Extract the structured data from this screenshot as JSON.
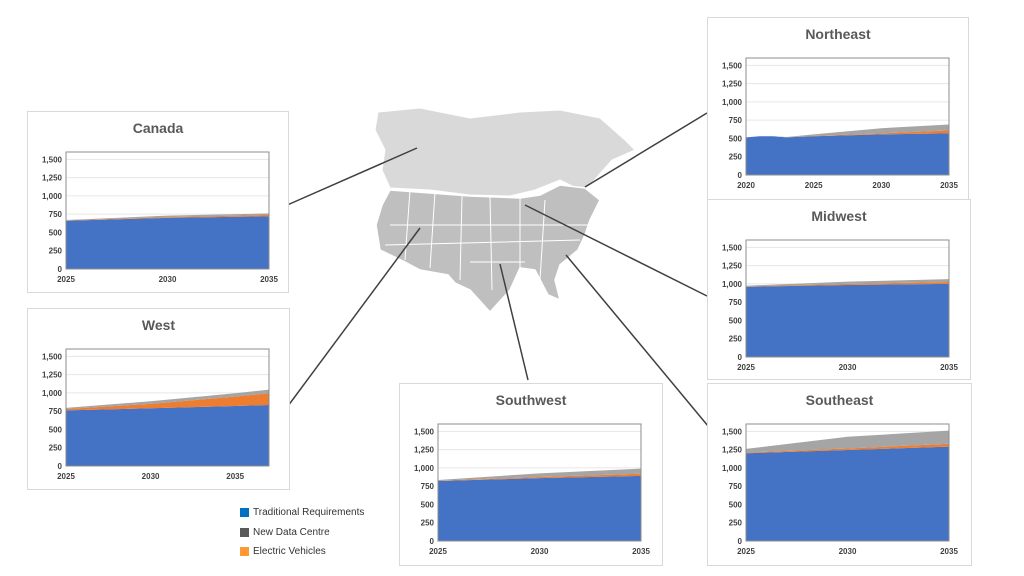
{
  "colors": {
    "traditional": "#4472c4",
    "data_centre": "#a5a5a5",
    "ev": "#ed7d31"
  },
  "legend": [
    {
      "label": "Traditional Requirements",
      "color": "#0070c0"
    },
    {
      "label": "New Data Centre",
      "color": "#595959"
    },
    {
      "label": "Electric Vehicles",
      "color": "#ff9933"
    }
  ],
  "chart_data": [
    {
      "type": "area",
      "title": "Canada",
      "stacked": true,
      "ylim": [
        0,
        1600
      ],
      "yticks": [
        0,
        250,
        500,
        750,
        "1,000",
        "1,250",
        "1,500"
      ],
      "xlim": [
        2025,
        2035
      ],
      "xticks": [
        2025,
        2030,
        2035
      ],
      "x": [
        2025,
        2030,
        2035
      ],
      "series": [
        {
          "name": "Traditional Requirements",
          "values": [
            660,
            700,
            720
          ]
        },
        {
          "name": "Electric Vehicles",
          "values": [
            5,
            10,
            20
          ]
        },
        {
          "name": "New Data Centre",
          "values": [
            5,
            20,
            20
          ]
        }
      ]
    },
    {
      "type": "area",
      "title": "West",
      "stacked": true,
      "ylim": [
        0,
        1600
      ],
      "yticks": [
        0,
        250,
        500,
        750,
        "1,000",
        "1,250",
        "1,500"
      ],
      "xlim": [
        2025,
        2037
      ],
      "xticks": [
        2025,
        2030,
        2035
      ],
      "x": [
        2025,
        2030,
        2035,
        2037
      ],
      "series": [
        {
          "name": "Traditional Requirements",
          "values": [
            760,
            790,
            820,
            835
          ]
        },
        {
          "name": "Electric Vehicles",
          "values": [
            20,
            60,
            130,
            160
          ]
        },
        {
          "name": "New Data Centre",
          "values": [
            15,
            35,
            45,
            50
          ]
        }
      ]
    },
    {
      "type": "area",
      "title": "Southwest",
      "stacked": true,
      "ylim": [
        0,
        1600
      ],
      "yticks": [
        0,
        250,
        500,
        750,
        "1,000",
        "1,250",
        "1,500"
      ],
      "xlim": [
        2025,
        2035
      ],
      "xticks": [
        2025,
        2030,
        2035
      ],
      "x": [
        2025,
        2030,
        2035
      ],
      "series": [
        {
          "name": "Traditional Requirements",
          "values": [
            820,
            860,
            890
          ]
        },
        {
          "name": "Electric Vehicles",
          "values": [
            5,
            15,
            30
          ]
        },
        {
          "name": "New Data Centre",
          "values": [
            10,
            50,
            70
          ]
        }
      ]
    },
    {
      "type": "area",
      "title": "Northeast",
      "stacked": true,
      "ylim": [
        0,
        1600
      ],
      "yticks": [
        0,
        250,
        500,
        750,
        "1,000",
        "1,250",
        "1,500"
      ],
      "xlim": [
        2020,
        2035
      ],
      "xticks": [
        2020,
        2025,
        2030,
        2035
      ],
      "x": [
        2020,
        2021,
        2022,
        2023,
        2025,
        2030,
        2035
      ],
      "series": [
        {
          "name": "Traditional Requirements",
          "values": [
            515,
            530,
            530,
            515,
            530,
            555,
            570
          ]
        },
        {
          "name": "Electric Vehicles",
          "values": [
            0,
            0,
            0,
            0,
            5,
            15,
            40
          ]
        },
        {
          "name": "New Data Centre",
          "values": [
            0,
            0,
            0,
            5,
            20,
            70,
            80
          ]
        }
      ]
    },
    {
      "type": "area",
      "title": "Midwest",
      "stacked": true,
      "ylim": [
        0,
        1600
      ],
      "yticks": [
        0,
        250,
        500,
        750,
        "1,000",
        "1,250",
        "1,500"
      ],
      "xlim": [
        2025,
        2035
      ],
      "xticks": [
        2025,
        2030,
        2035
      ],
      "x": [
        2025,
        2030,
        2035
      ],
      "series": [
        {
          "name": "Traditional Requirements",
          "values": [
            960,
            985,
            1000
          ]
        },
        {
          "name": "Electric Vehicles",
          "values": [
            5,
            15,
            25
          ]
        },
        {
          "name": "New Data Centre",
          "values": [
            10,
            30,
            40
          ]
        }
      ]
    },
    {
      "type": "area",
      "title": "Southeast",
      "stacked": true,
      "ylim": [
        0,
        1600
      ],
      "yticks": [
        0,
        250,
        500,
        750,
        "1,000",
        "1,250",
        "1,500"
      ],
      "xlim": [
        2025,
        2035
      ],
      "xticks": [
        2025,
        2030,
        2035
      ],
      "x": [
        2025,
        2030,
        2035
      ],
      "series": [
        {
          "name": "Traditional Requirements",
          "values": [
            1200,
            1245,
            1290
          ]
        },
        {
          "name": "Electric Vehicles",
          "values": [
            10,
            20,
            40
          ]
        },
        {
          "name": "New Data Centre",
          "values": [
            50,
            160,
            180
          ]
        }
      ]
    }
  ]
}
